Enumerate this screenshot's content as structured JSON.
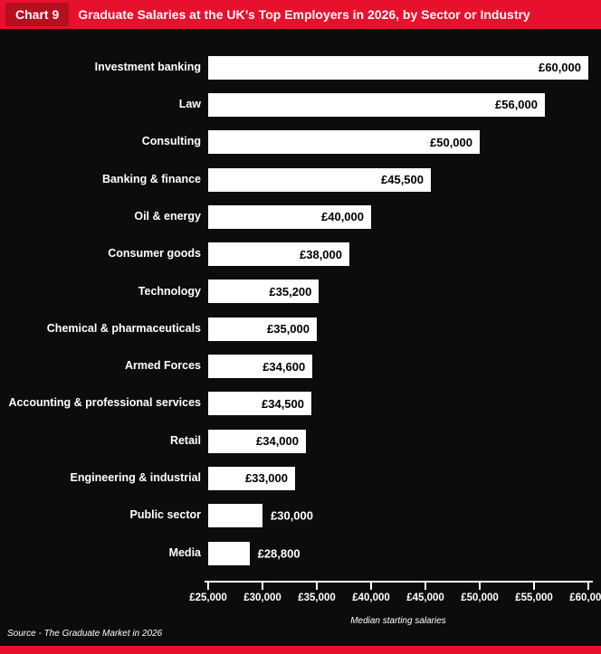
{
  "header": {
    "tag": "Chart 9",
    "title": "Graduate Salaries at the UK’s Top Employers in 2026, by Sector or Industry"
  },
  "chart_data": {
    "type": "bar",
    "orientation": "horizontal",
    "title": "Graduate Salaries at the UK’s Top Employers in 2026, by Sector or Industry",
    "categories": [
      "Investment banking",
      "Law",
      "Consulting",
      "Banking & finance",
      "Oil & energy",
      "Consumer goods",
      "Technology",
      "Chemical & pharmaceuticals",
      "Armed Forces",
      "Accounting & professional services",
      "Retail",
      "Engineering & industrial",
      "Public sector",
      "Media"
    ],
    "values": [
      60000,
      56000,
      50000,
      45500,
      40000,
      38000,
      35200,
      35000,
      34600,
      34500,
      34000,
      33000,
      30000,
      28800
    ],
    "value_labels": [
      "£60,000",
      "£56,000",
      "£50,000",
      "£45,500",
      "£40,000",
      "£38,000",
      "£35,200",
      "£35,000",
      "£34,600",
      "£34,500",
      "£34,000",
      "£33,000",
      "£30,000",
      "£28,800"
    ],
    "xlabel": "Median starting salaries",
    "x_ticks": [
      "£25,000",
      "£30,000",
      "£35,000",
      "£40,000",
      "£45,000",
      "£50,000",
      "£55,000",
      "£60,000"
    ],
    "xlim": [
      25000,
      60000
    ],
    "grid": false,
    "legend": "none"
  },
  "source": "Source - The Graduate Market in 2026",
  "colors": {
    "header_red": "#e8112d",
    "tag_red": "#b5101f",
    "background": "#0c0c0c",
    "bar": "#ffffff",
    "bar_value_text": "#000000",
    "text": "#ffffff"
  }
}
